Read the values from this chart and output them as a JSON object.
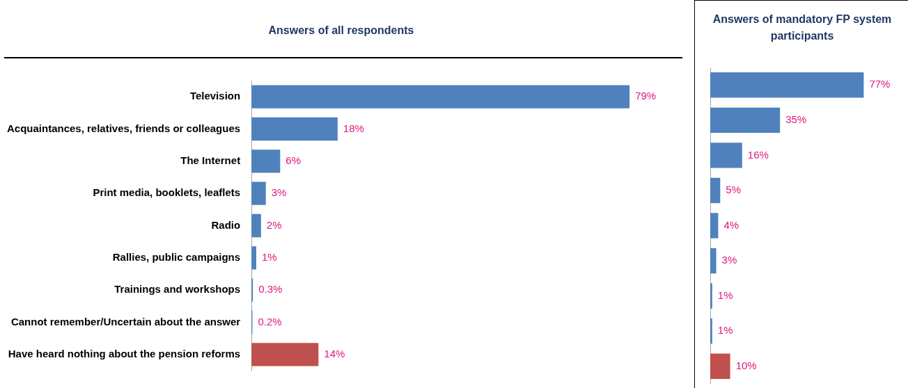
{
  "chart_data": [
    {
      "type": "bar",
      "orientation": "horizontal",
      "title": "Answers of all respondents",
      "categories": [
        "Television",
        "Acquaintances, relatives, friends or colleagues",
        "The Internet",
        "Print media, booklets, leaflets",
        "Radio",
        "Rallies, public campaigns",
        "Trainings and workshops",
        "Cannot remember/Uncertain about the answer",
        "Have heard nothing about the pension reforms"
      ],
      "values": [
        79,
        18,
        6,
        3,
        2,
        1,
        0.3,
        0.2,
        14
      ],
      "value_labels": [
        "79%",
        "18%",
        "6%",
        "3%",
        "2%",
        "1%",
        "0.3%",
        "0.2%",
        "14%"
      ],
      "colors": [
        "#4f81bd",
        "#4f81bd",
        "#4f81bd",
        "#4f81bd",
        "#4f81bd",
        "#4f81bd",
        "#4f81bd",
        "#4f81bd",
        "#c0504d"
      ],
      "tick_labels": "y",
      "legend": false
    },
    {
      "type": "bar",
      "orientation": "horizontal",
      "title": "Answers of mandatory FP system participants",
      "categories": [
        null,
        null,
        null,
        null,
        null,
        null,
        null,
        null,
        null
      ],
      "values": [
        77,
        35,
        16,
        5,
        4,
        3,
        1,
        1,
        10
      ],
      "value_labels": [
        "77%",
        "35%",
        "16%",
        "5%",
        "4%",
        "3%",
        "1%",
        "1%",
        "10%"
      ],
      "colors": [
        "#4f81bd",
        "#4f81bd",
        "#4f81bd",
        "#4f81bd",
        "#4f81bd",
        "#4f81bd",
        "#4f81bd",
        "#4f81bd",
        "#c0504d"
      ],
      "tick_labels": false,
      "legend": false
    }
  ]
}
